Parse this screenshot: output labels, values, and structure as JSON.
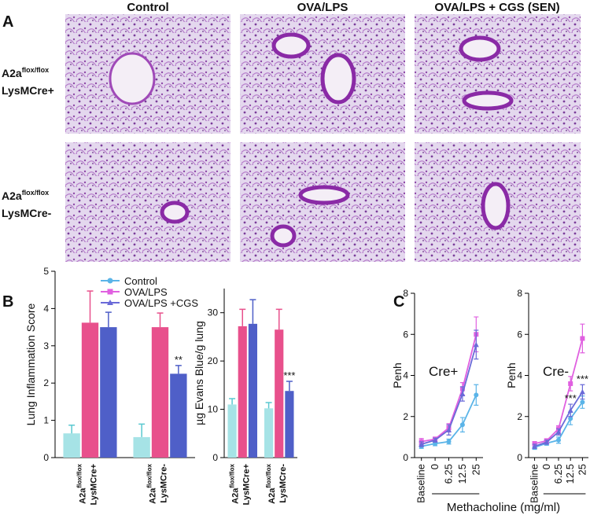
{
  "panel_a": {
    "label": "A",
    "columns": [
      "Control",
      "OVA/LPS",
      "OVA/LPS + CGS (SEN)"
    ],
    "rows": [
      {
        "gene": "A2a",
        "sup": "flox/flox",
        "line2": "LysMCre+"
      },
      {
        "gene": "A2a",
        "sup": "flox/flox",
        "line2": "LysMCre-"
      }
    ]
  },
  "panel_b_label": "B",
  "panel_c_label": "C",
  "panel_c_xlabel": "Methacholine (mg/ml)",
  "chart_data": [
    {
      "type": "bar",
      "ylabel": "Lung  Inflammation Score",
      "categories": [
        {
          "gene": "A2a",
          "sup": "flox/flox",
          "line2": "LysMCre+"
        },
        {
          "gene": "A2a",
          "sup": "flox/flox",
          "line2": "LysMCre-"
        }
      ],
      "series": [
        {
          "name": "Control",
          "color": "#a6e3e6",
          "line_color": "#5ab4e8",
          "values": [
            0.65,
            0.55
          ],
          "errors": [
            0.22,
            0.35
          ]
        },
        {
          "name": "OVA/LPS",
          "color": "#e8508c",
          "line_color": "#e060e0",
          "values": [
            3.62,
            3.5
          ],
          "errors": [
            0.85,
            0.38
          ]
        },
        {
          "name": "OVA/LPS +CGS",
          "color": "#4f5fc8",
          "line_color": "#6a6ad8",
          "values": [
            3.5,
            2.25
          ],
          "errors": [
            0.4,
            0.22
          ]
        }
      ],
      "ylim": [
        0,
        5
      ],
      "yticks": [
        0,
        1,
        2,
        3,
        4,
        5
      ],
      "annotations": [
        "**"
      ]
    },
    {
      "type": "bar",
      "ylabel": "µg Evans Blue/g lung",
      "categories": [
        {
          "gene": "A2a",
          "sup": "flox/flox",
          "line2": "LysMCre+"
        },
        {
          "gene": "A2a",
          "sup": "flox/flox",
          "line2": "LysMCre-"
        }
      ],
      "series": [
        {
          "color": "#a6e3e6",
          "values": [
            11,
            10.2
          ],
          "errors": [
            1.2,
            1.2
          ]
        },
        {
          "color": "#e8508c",
          "values": [
            27.2,
            26.5
          ],
          "errors": [
            3.5,
            4.2
          ]
        },
        {
          "color": "#4f5fc8",
          "values": [
            27.7,
            13.8
          ],
          "errors": [
            5,
            2
          ]
        }
      ],
      "ylim": [
        0,
        35
      ],
      "yticks": [
        0,
        10,
        20,
        30
      ],
      "annotations": [
        "***"
      ]
    },
    {
      "type": "line",
      "ylabel": "Penh",
      "categories": [
        "Baseline",
        "0",
        "6.25",
        "12.5",
        "25"
      ],
      "series": [
        {
          "color": "#5ab4e8",
          "values": [
            0.55,
            0.68,
            0.78,
            1.6,
            3.05
          ],
          "errors": [
            0.1,
            0.1,
            0.12,
            0.35,
            0.5
          ]
        },
        {
          "color": "#e060e0",
          "values": [
            0.78,
            0.9,
            1.45,
            3.35,
            6.0
          ],
          "errors": [
            0.15,
            0.1,
            0.2,
            0.3,
            0.85
          ]
        },
        {
          "color": "#6a6ad8",
          "values": [
            0.65,
            0.85,
            1.35,
            3.1,
            5.5
          ],
          "errors": [
            0.12,
            0.1,
            0.25,
            0.35,
            0.7
          ]
        }
      ],
      "ylim": [
        0,
        8
      ],
      "yticks": [
        0,
        2,
        4,
        6,
        8
      ],
      "annotations": [
        "Cre+"
      ]
    },
    {
      "type": "line",
      "ylabel": "Penh",
      "categories": [
        "Baseline",
        "0",
        "6.25",
        "12.5",
        "25"
      ],
      "series": [
        {
          "color": "#5ab4e8",
          "values": [
            0.5,
            0.7,
            0.85,
            1.9,
            2.7
          ],
          "errors": [
            0.1,
            0.1,
            0.15,
            0.3,
            0.3
          ]
        },
        {
          "color": "#e060e0",
          "values": [
            0.68,
            0.82,
            1.4,
            3.6,
            5.8
          ],
          "errors": [
            0.1,
            0.1,
            0.15,
            0.35,
            0.7
          ]
        },
        {
          "color": "#6a6ad8",
          "values": [
            0.55,
            0.75,
            1.25,
            2.3,
            3.2
          ],
          "errors": [
            0.1,
            0.1,
            0.15,
            0.3,
            0.35
          ]
        }
      ],
      "ylim": [
        0,
        8
      ],
      "yticks": [
        0,
        2,
        4,
        6,
        8
      ],
      "annotations": [
        "Cre-",
        "***",
        "***"
      ]
    }
  ]
}
